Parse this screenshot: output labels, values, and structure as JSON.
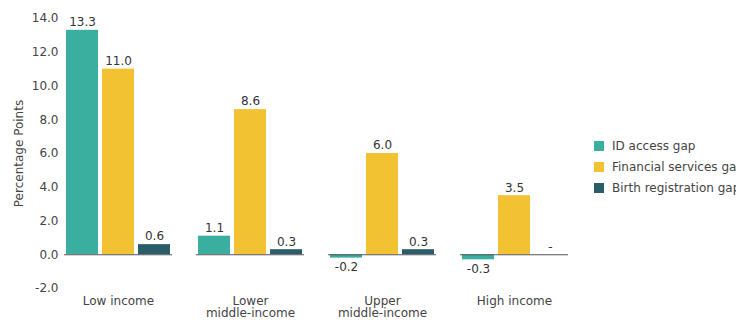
{
  "chart_data": {
    "type": "bar",
    "categories": [
      "Low income",
      "Lower middle-income",
      "Upper middle-income",
      "High income"
    ],
    "series": [
      {
        "name": "ID access gap",
        "color": "#3aafa0",
        "values": [
          13.3,
          1.1,
          -0.2,
          -0.3
        ],
        "value_labels": [
          "13.3",
          "1.1",
          "-0.2",
          "-0.3"
        ]
      },
      {
        "name": "Financial services gap",
        "color": "#f2c233",
        "values": [
          11.0,
          8.6,
          6.0,
          3.5
        ],
        "value_labels": [
          "11.0",
          "8.6",
          "6.0",
          "3.5"
        ]
      },
      {
        "name": "Birth registration gap",
        "color": "#2b5e68",
        "values": [
          0.6,
          0.3,
          0.3,
          null
        ],
        "value_labels": [
          "0.6",
          "0.3",
          "0.3",
          "-"
        ]
      }
    ],
    "y_label": "Percentage Points",
    "ylim": [
      -2,
      14
    ],
    "yticks": [
      {
        "value": -2,
        "label": "-2.0"
      },
      {
        "value": 0,
        "label": "0.0"
      },
      {
        "value": 2,
        "label": "2.0"
      },
      {
        "value": 4,
        "label": "4.0"
      },
      {
        "value": 6,
        "label": "6.0"
      },
      {
        "value": 8,
        "label": "8.0"
      },
      {
        "value": 10,
        "label": "10.0"
      },
      {
        "value": 12,
        "label": "12.0"
      },
      {
        "value": 14,
        "label": "14.0"
      }
    ],
    "grid": false,
    "legend": "right",
    "data_labels": true
  }
}
